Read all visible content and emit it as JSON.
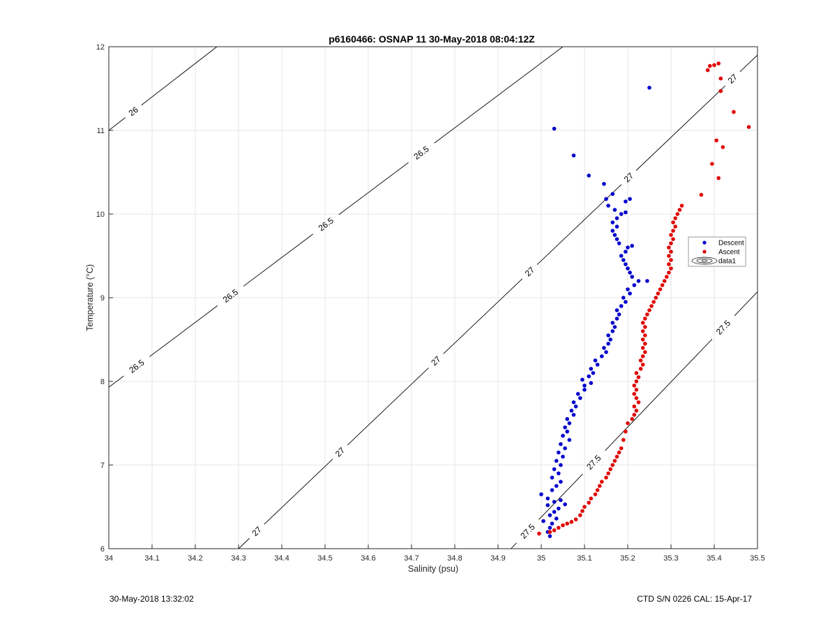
{
  "chart_data": {
    "type": "scatter",
    "title": "p6160466: OSNAP 11 30-May-2018 08:04:12Z",
    "xlabel": "Salinity (psu)",
    "ylabel": "Temperature (°C)",
    "xlim": [
      34,
      35.5
    ],
    "ylim": [
      6,
      12
    ],
    "x_ticks": [
      "34",
      "34.1",
      "34.2",
      "34.3",
      "34.4",
      "34.5",
      "34.6",
      "34.7",
      "34.8",
      "34.9",
      "35",
      "35.1",
      "35.2",
      "35.3",
      "35.4",
      "35.5"
    ],
    "y_ticks": [
      "6",
      "7",
      "8",
      "9",
      "10",
      "11",
      "12"
    ],
    "grid": true,
    "legend_position": "right",
    "legend": [
      "Descent",
      "Ascent",
      "data1"
    ],
    "density_contours": [
      {
        "level": "26",
        "points": [
          [
            34.0,
            11.0
          ],
          [
            34.25,
            12.0
          ]
        ],
        "labels": [
          [
            34.055,
            11.24
          ]
        ]
      },
      {
        "level": "26.5",
        "points": [
          [
            34.0,
            7.93
          ],
          [
            35.05,
            12.0
          ]
        ],
        "labels": [
          [
            34.06,
            8.21
          ],
          [
            34.27,
            9.1
          ],
          [
            34.49,
            9.96
          ],
          [
            34.71,
            10.82
          ]
        ]
      },
      {
        "level": "27",
        "points": [
          [
            34.3,
            6.0
          ],
          [
            35.5,
            11.9
          ]
        ],
        "labels": [
          [
            34.34,
            6.22
          ],
          [
            34.53,
            7.18
          ],
          [
            34.75,
            8.28
          ],
          [
            34.97,
            9.33
          ],
          [
            35.2,
            10.45
          ],
          [
            35.44,
            11.63
          ]
        ]
      },
      {
        "level": "27.5",
        "points": [
          [
            34.93,
            6.0
          ],
          [
            35.5,
            9.07
          ]
        ],
        "labels": [
          [
            34.97,
            6.2
          ],
          [
            35.118,
            7.05
          ],
          [
            35.44,
            8.55
          ]
        ]
      }
    ],
    "series": [
      {
        "name": "Descent",
        "color": "#0000cc",
        "points": [
          [
            35.02,
            6.15
          ],
          [
            35.015,
            6.2
          ],
          [
            35.02,
            6.25
          ],
          [
            35.025,
            6.3
          ],
          [
            35.005,
            6.33
          ],
          [
            35.035,
            6.36
          ],
          [
            35.02,
            6.4
          ],
          [
            35.03,
            6.44
          ],
          [
            35.04,
            6.48
          ],
          [
            35.015,
            6.52
          ],
          [
            35.055,
            6.53
          ],
          [
            35.03,
            6.56
          ],
          [
            35.045,
            6.58
          ],
          [
            35.015,
            6.6
          ],
          [
            35.0,
            6.65
          ],
          [
            35.025,
            6.7
          ],
          [
            35.035,
            6.75
          ],
          [
            35.045,
            6.8
          ],
          [
            35.025,
            6.85
          ],
          [
            35.04,
            6.9
          ],
          [
            35.03,
            6.95
          ],
          [
            35.045,
            7.0
          ],
          [
            35.035,
            7.05
          ],
          [
            35.05,
            7.1
          ],
          [
            35.04,
            7.15
          ],
          [
            35.055,
            7.2
          ],
          [
            35.045,
            7.25
          ],
          [
            35.065,
            7.3
          ],
          [
            35.05,
            7.35
          ],
          [
            35.06,
            7.4
          ],
          [
            35.055,
            7.45
          ],
          [
            35.065,
            7.5
          ],
          [
            35.06,
            7.55
          ],
          [
            35.075,
            7.6
          ],
          [
            35.07,
            7.65
          ],
          [
            35.08,
            7.7
          ],
          [
            35.075,
            7.75
          ],
          [
            35.09,
            7.8
          ],
          [
            35.085,
            7.85
          ],
          [
            35.1,
            7.9
          ],
          [
            35.1,
            7.95
          ],
          [
            35.115,
            7.98
          ],
          [
            35.095,
            8.02
          ],
          [
            35.11,
            8.06
          ],
          [
            35.12,
            8.1
          ],
          [
            35.115,
            8.15
          ],
          [
            35.13,
            8.2
          ],
          [
            35.125,
            8.25
          ],
          [
            35.14,
            8.3
          ],
          [
            35.15,
            8.35
          ],
          [
            35.145,
            8.4
          ],
          [
            35.155,
            8.45
          ],
          [
            35.16,
            8.5
          ],
          [
            35.155,
            8.55
          ],
          [
            35.165,
            8.6
          ],
          [
            35.17,
            8.65
          ],
          [
            35.165,
            8.7
          ],
          [
            35.175,
            8.75
          ],
          [
            35.18,
            8.8
          ],
          [
            35.175,
            8.85
          ],
          [
            35.185,
            8.9
          ],
          [
            35.195,
            8.95
          ],
          [
            35.19,
            9.0
          ],
          [
            35.205,
            9.05
          ],
          [
            35.2,
            9.1
          ],
          [
            35.215,
            9.15
          ],
          [
            35.225,
            9.2
          ],
          [
            35.245,
            9.2
          ],
          [
            35.21,
            9.25
          ],
          [
            35.205,
            9.3
          ],
          [
            35.2,
            9.35
          ],
          [
            35.195,
            9.4
          ],
          [
            35.19,
            9.45
          ],
          [
            35.185,
            9.5
          ],
          [
            35.195,
            9.55
          ],
          [
            35.2,
            9.6
          ],
          [
            35.21,
            9.62
          ],
          [
            35.18,
            9.65
          ],
          [
            35.175,
            9.7
          ],
          [
            35.17,
            9.75
          ],
          [
            35.165,
            9.8
          ],
          [
            35.175,
            9.85
          ],
          [
            35.165,
            9.9
          ],
          [
            35.175,
            9.95
          ],
          [
            35.185,
            10.0
          ],
          [
            35.195,
            10.02
          ],
          [
            35.17,
            10.05
          ],
          [
            35.155,
            10.1
          ],
          [
            35.195,
            10.15
          ],
          [
            35.205,
            10.18
          ],
          [
            35.15,
            10.18
          ],
          [
            35.165,
            10.24
          ],
          [
            35.145,
            10.36
          ],
          [
            35.11,
            10.46
          ],
          [
            35.075,
            10.7
          ],
          [
            35.03,
            11.02
          ],
          [
            35.25,
            11.51
          ]
        ]
      },
      {
        "name": "Ascent",
        "color": "#e00000",
        "points": [
          [
            34.995,
            6.18
          ],
          [
            35.02,
            6.2
          ],
          [
            35.03,
            6.22
          ],
          [
            35.04,
            6.25
          ],
          [
            35.05,
            6.28
          ],
          [
            35.06,
            6.3
          ],
          [
            35.07,
            6.32
          ],
          [
            35.08,
            6.35
          ],
          [
            35.09,
            6.4
          ],
          [
            35.095,
            6.45
          ],
          [
            35.1,
            6.5
          ],
          [
            35.11,
            6.55
          ],
          [
            35.115,
            6.6
          ],
          [
            35.125,
            6.65
          ],
          [
            35.13,
            6.7
          ],
          [
            35.135,
            6.75
          ],
          [
            35.14,
            6.8
          ],
          [
            35.15,
            6.85
          ],
          [
            35.155,
            6.9
          ],
          [
            35.16,
            6.95
          ],
          [
            35.165,
            7.0
          ],
          [
            35.17,
            7.05
          ],
          [
            35.175,
            7.1
          ],
          [
            35.18,
            7.15
          ],
          [
            35.185,
            7.2
          ],
          [
            35.19,
            7.3
          ],
          [
            35.195,
            7.4
          ],
          [
            35.2,
            7.5
          ],
          [
            35.21,
            7.55
          ],
          [
            35.215,
            7.6
          ],
          [
            35.22,
            7.65
          ],
          [
            35.215,
            7.7
          ],
          [
            35.225,
            7.75
          ],
          [
            35.22,
            7.8
          ],
          [
            35.215,
            7.85
          ],
          [
            35.22,
            7.9
          ],
          [
            35.215,
            7.95
          ],
          [
            35.22,
            8.0
          ],
          [
            35.225,
            8.05
          ],
          [
            35.22,
            8.1
          ],
          [
            35.23,
            8.15
          ],
          [
            35.235,
            8.2
          ],
          [
            35.23,
            8.25
          ],
          [
            35.235,
            8.3
          ],
          [
            35.24,
            8.35
          ],
          [
            35.235,
            8.4
          ],
          [
            35.24,
            8.45
          ],
          [
            35.235,
            8.5
          ],
          [
            35.24,
            8.55
          ],
          [
            35.235,
            8.6
          ],
          [
            35.24,
            8.65
          ],
          [
            35.235,
            8.7
          ],
          [
            35.24,
            8.75
          ],
          [
            35.245,
            8.8
          ],
          [
            35.25,
            8.85
          ],
          [
            35.255,
            8.9
          ],
          [
            35.26,
            8.95
          ],
          [
            35.265,
            9.0
          ],
          [
            35.27,
            9.05
          ],
          [
            35.275,
            9.1
          ],
          [
            35.28,
            9.15
          ],
          [
            35.285,
            9.2
          ],
          [
            35.29,
            9.25
          ],
          [
            35.295,
            9.3
          ],
          [
            35.3,
            9.35
          ],
          [
            35.295,
            9.4
          ],
          [
            35.3,
            9.45
          ],
          [
            35.295,
            9.5
          ],
          [
            35.3,
            9.55
          ],
          [
            35.295,
            9.6
          ],
          [
            35.3,
            9.65
          ],
          [
            35.305,
            9.7
          ],
          [
            35.3,
            9.75
          ],
          [
            35.305,
            9.8
          ],
          [
            35.31,
            9.85
          ],
          [
            35.305,
            9.9
          ],
          [
            35.31,
            9.95
          ],
          [
            35.315,
            10.0
          ],
          [
            35.32,
            10.05
          ],
          [
            35.325,
            10.1
          ],
          [
            35.37,
            10.23
          ],
          [
            35.41,
            10.43
          ],
          [
            35.395,
            10.6
          ],
          [
            35.42,
            10.8
          ],
          [
            35.405,
            10.88
          ],
          [
            35.48,
            11.04
          ],
          [
            35.445,
            11.22
          ],
          [
            35.415,
            11.47
          ],
          [
            35.415,
            11.62
          ],
          [
            35.385,
            11.72
          ],
          [
            35.4,
            11.78
          ],
          [
            35.39,
            11.77
          ],
          [
            35.41,
            11.8
          ]
        ]
      }
    ]
  },
  "footer": {
    "timestamp": "30-May-2018 13:32:02",
    "instrument": "CTD S/N 0226  CAL: 15-Apr-17"
  }
}
